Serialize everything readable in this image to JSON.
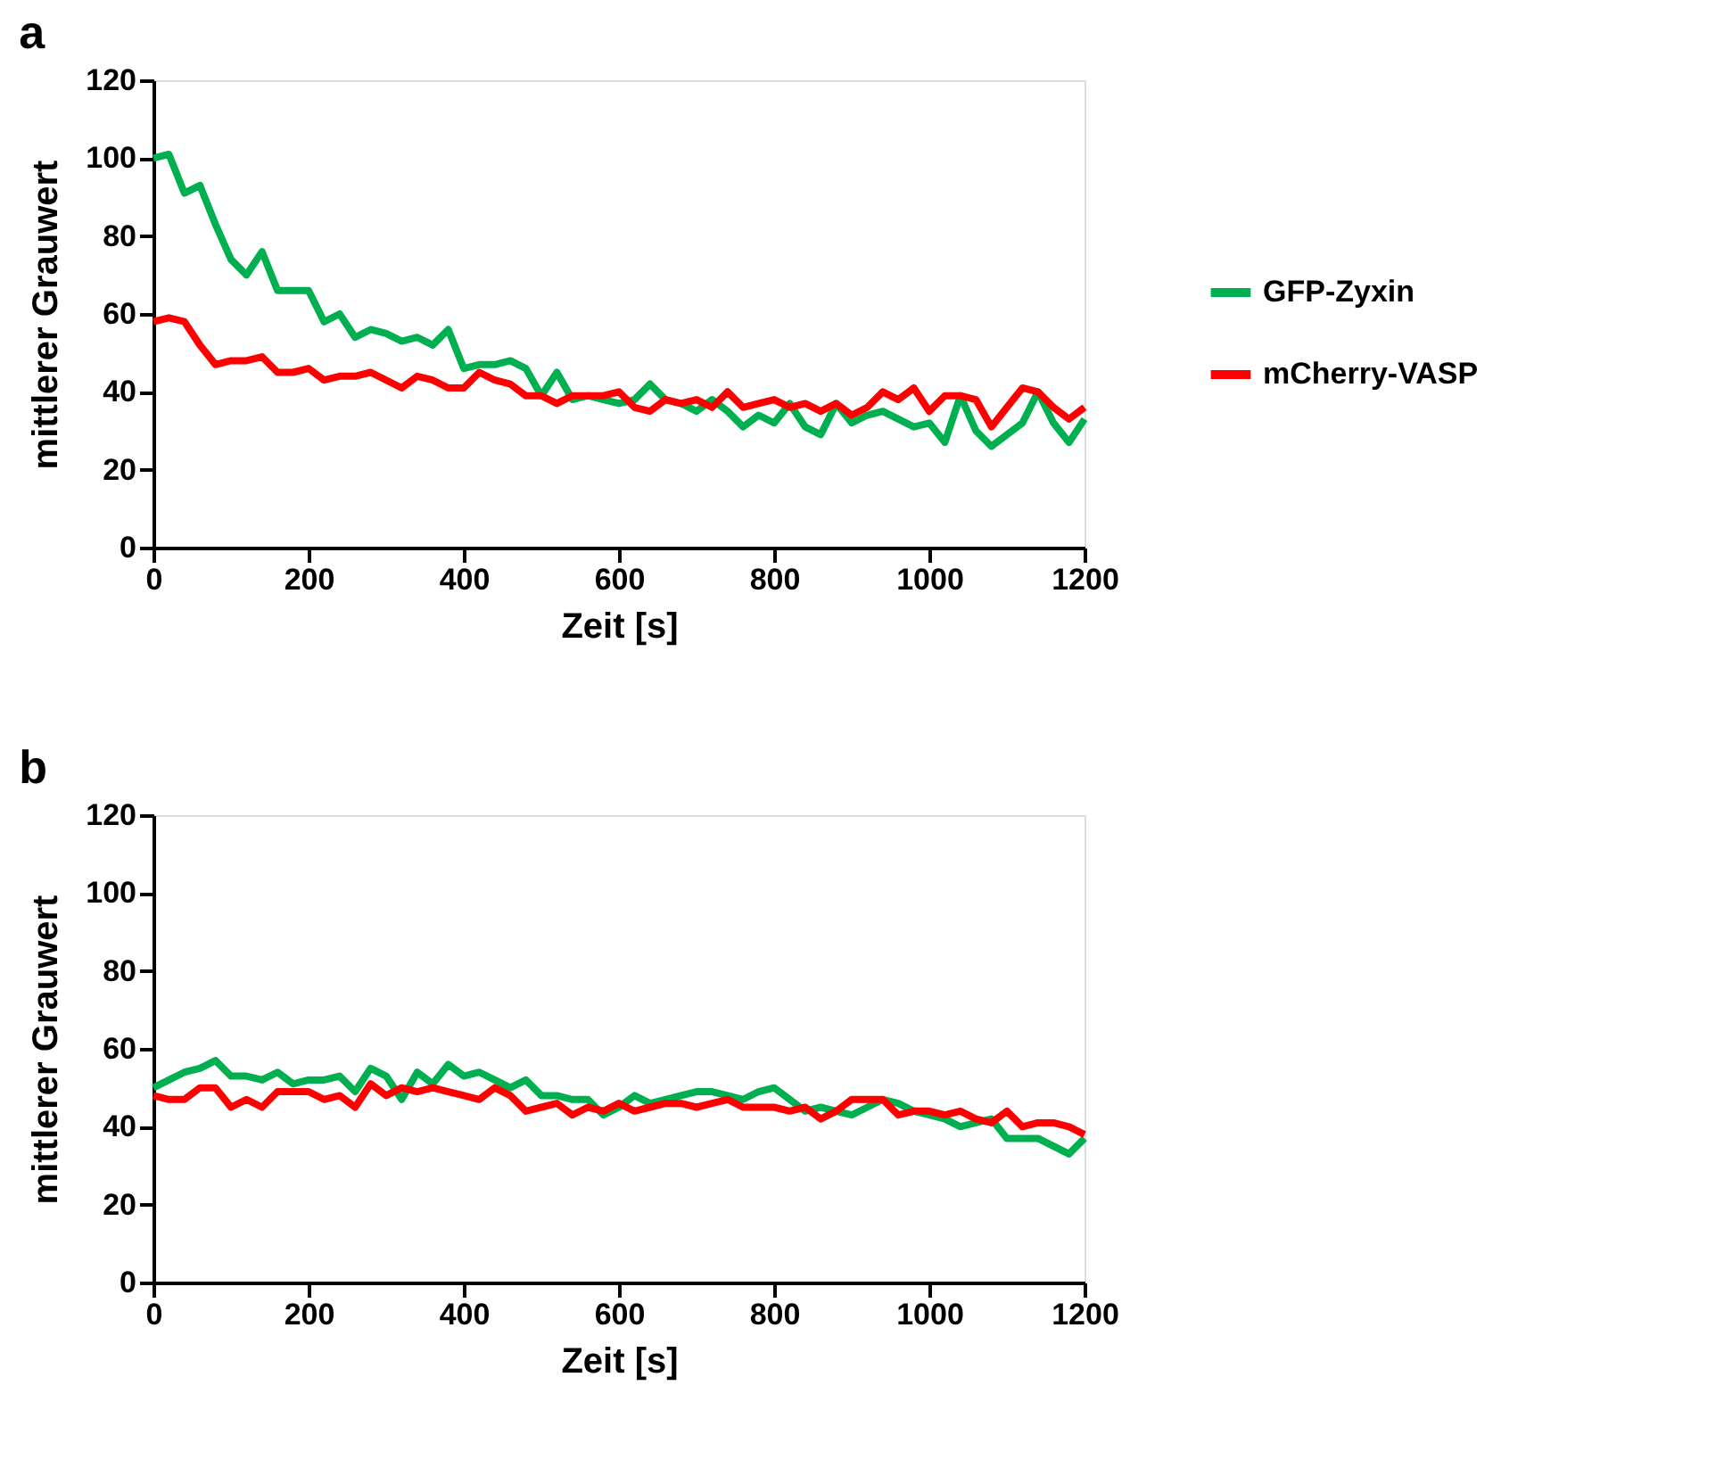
{
  "chart_data": [
    {
      "type": "line",
      "title": "a",
      "xlabel": "Zeit [s]",
      "ylabel": "mittlerer Grauwert",
      "xlim": [
        0,
        1200
      ],
      "xticks": [
        0,
        200,
        400,
        600,
        800,
        1000,
        1200
      ],
      "ylim": [
        0,
        120
      ],
      "yticks": [
        0,
        20,
        40,
        60,
        80,
        100,
        120
      ],
      "grid": false,
      "legend": "right",
      "marker": "none",
      "line_style": "solid",
      "x": [
        0,
        20,
        40,
        60,
        80,
        100,
        120,
        140,
        160,
        180,
        200,
        220,
        240,
        260,
        280,
        300,
        320,
        340,
        360,
        380,
        400,
        420,
        440,
        460,
        480,
        500,
        520,
        540,
        560,
        580,
        600,
        620,
        640,
        660,
        680,
        700,
        720,
        740,
        760,
        780,
        800,
        820,
        840,
        860,
        880,
        900,
        920,
        940,
        960,
        980,
        1000,
        1020,
        1040,
        1060,
        1080,
        1100,
        1120,
        1140,
        1160,
        1180,
        1200
      ],
      "series": [
        {
          "name": "GFP-Zyxin",
          "color": "#00b050",
          "values": [
            100,
            101,
            91,
            93,
            83,
            74,
            70,
            76,
            66,
            66,
            66,
            58,
            60,
            54,
            56,
            55,
            53,
            54,
            52,
            56,
            46,
            47,
            47,
            48,
            46,
            39,
            45,
            38,
            39,
            38,
            37,
            38,
            42,
            38,
            37,
            35,
            38,
            35,
            31,
            34,
            32,
            37,
            31,
            29,
            37,
            32,
            34,
            35,
            33,
            31,
            32,
            27,
            39,
            30,
            26,
            29,
            32,
            40,
            32,
            27,
            33
          ]
        },
        {
          "name": "mCherry-VASP",
          "color": "#ff0000",
          "values": [
            58,
            59,
            58,
            52,
            47,
            48,
            48,
            49,
            45,
            45,
            46,
            43,
            44,
            44,
            45,
            43,
            41,
            44,
            43,
            41,
            41,
            45,
            43,
            42,
            39,
            39,
            37,
            39,
            39,
            39,
            40,
            36,
            35,
            38,
            37,
            38,
            36,
            40,
            36,
            37,
            38,
            36,
            37,
            35,
            37,
            34,
            36,
            40,
            38,
            41,
            35,
            39,
            39,
            38,
            31,
            36,
            41,
            40,
            36,
            33,
            36
          ]
        }
      ]
    },
    {
      "type": "line",
      "title": "b",
      "xlabel": "Zeit [s]",
      "ylabel": "mittlerer Grauwert",
      "xlim": [
        0,
        1200
      ],
      "xticks": [
        0,
        200,
        400,
        600,
        800,
        1000,
        1200
      ],
      "ylim": [
        0,
        120
      ],
      "yticks": [
        0,
        20,
        40,
        60,
        80,
        100,
        120
      ],
      "grid": false,
      "legend": "right",
      "marker": "none",
      "line_style": "solid",
      "x": [
        0,
        20,
        40,
        60,
        80,
        100,
        120,
        140,
        160,
        180,
        200,
        220,
        240,
        260,
        280,
        300,
        320,
        340,
        360,
        380,
        400,
        420,
        440,
        460,
        480,
        500,
        520,
        540,
        560,
        580,
        600,
        620,
        640,
        660,
        680,
        700,
        720,
        740,
        760,
        780,
        800,
        820,
        840,
        860,
        880,
        900,
        920,
        940,
        960,
        980,
        1000,
        1020,
        1040,
        1060,
        1080,
        1100,
        1120,
        1140,
        1160,
        1180,
        1200
      ],
      "series": [
        {
          "name": "GFP-Zyxin",
          "color": "#00b050",
          "values": [
            50,
            52,
            54,
            55,
            57,
            53,
            53,
            52,
            54,
            51,
            52,
            52,
            53,
            49,
            55,
            53,
            47,
            54,
            51,
            56,
            53,
            54,
            52,
            50,
            52,
            48,
            48,
            47,
            47,
            43,
            45,
            48,
            46,
            47,
            48,
            49,
            49,
            48,
            47,
            49,
            50,
            47,
            44,
            45,
            44,
            43,
            45,
            47,
            46,
            44,
            43,
            42,
            40,
            41,
            42,
            37,
            37,
            37,
            35,
            33,
            37
          ]
        },
        {
          "name": "mCherry-VASP",
          "color": "#ff0000",
          "values": [
            48,
            47,
            47,
            50,
            50,
            45,
            47,
            45,
            49,
            49,
            49,
            47,
            48,
            45,
            51,
            48,
            50,
            49,
            50,
            49,
            48,
            47,
            50,
            48,
            44,
            45,
            46,
            43,
            45,
            44,
            46,
            44,
            45,
            46,
            46,
            45,
            46,
            47,
            45,
            45,
            45,
            44,
            45,
            42,
            44,
            47,
            47,
            47,
            43,
            44,
            44,
            43,
            44,
            42,
            41,
            44,
            40,
            41,
            41,
            40,
            38
          ]
        }
      ]
    }
  ]
}
